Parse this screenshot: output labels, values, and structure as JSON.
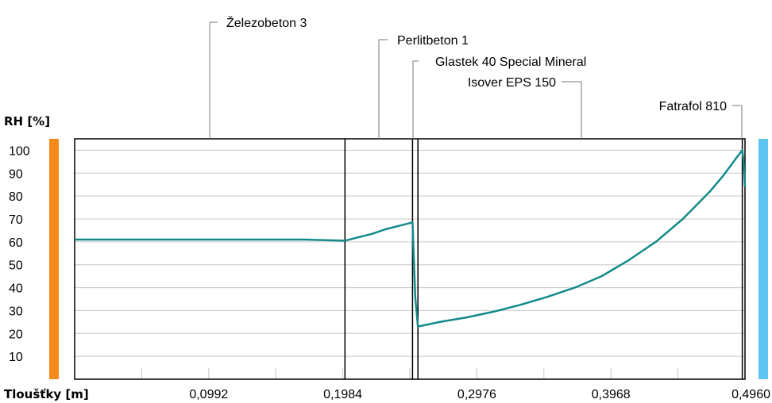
{
  "chart_data": {
    "type": "line",
    "ylabel": "RH [%]",
    "xlabel": "Tloušťky [m]",
    "xlim": [
      0,
      0.496
    ],
    "ylim": [
      0,
      105
    ],
    "x_tick_labels": [
      "0,0992",
      "0,1984",
      "0,2976",
      "0,3968",
      "0,4960"
    ],
    "x_ticks": [
      0.0992,
      0.1984,
      0.2976,
      0.3968,
      0.496
    ],
    "y_ticks": [
      10,
      20,
      30,
      40,
      50,
      60,
      70,
      80,
      90,
      100
    ],
    "grid": true,
    "layers": [
      {
        "name": "Železobeton 3",
        "x_end": 0.2
      },
      {
        "name": "Perlitbeton 1",
        "x_end": 0.25
      },
      {
        "name": "Glastek 40 Special Mineral",
        "x_end": 0.254
      },
      {
        "name": "Isover EPS 150",
        "x_end": 0.494
      },
      {
        "name": "Fatrafol 810",
        "x_end": 0.496
      }
    ],
    "series": [
      {
        "color": "#138a8a",
        "x": [
          0,
          0.168,
          0.2,
          0.21,
          0.22,
          0.23,
          0.24,
          0.25,
          0.2505,
          0.252,
          0.254,
          0.27,
          0.29,
          0.31,
          0.33,
          0.35,
          0.37,
          0.39,
          0.41,
          0.43,
          0.45,
          0.47,
          0.48,
          0.49,
          0.494,
          0.495,
          0.496
        ],
        "y": [
          61,
          61,
          60.5,
          62,
          63.5,
          65.5,
          67,
          68.5,
          60,
          36,
          23,
          25,
          27,
          29.5,
          32.5,
          36,
          40,
          45,
          52,
          60,
          70,
          82,
          89,
          97,
          100,
          95,
          84
        ]
      }
    ],
    "left_boundary_color": "#f28a1c",
    "right_boundary_color": "#5ec4f0"
  }
}
